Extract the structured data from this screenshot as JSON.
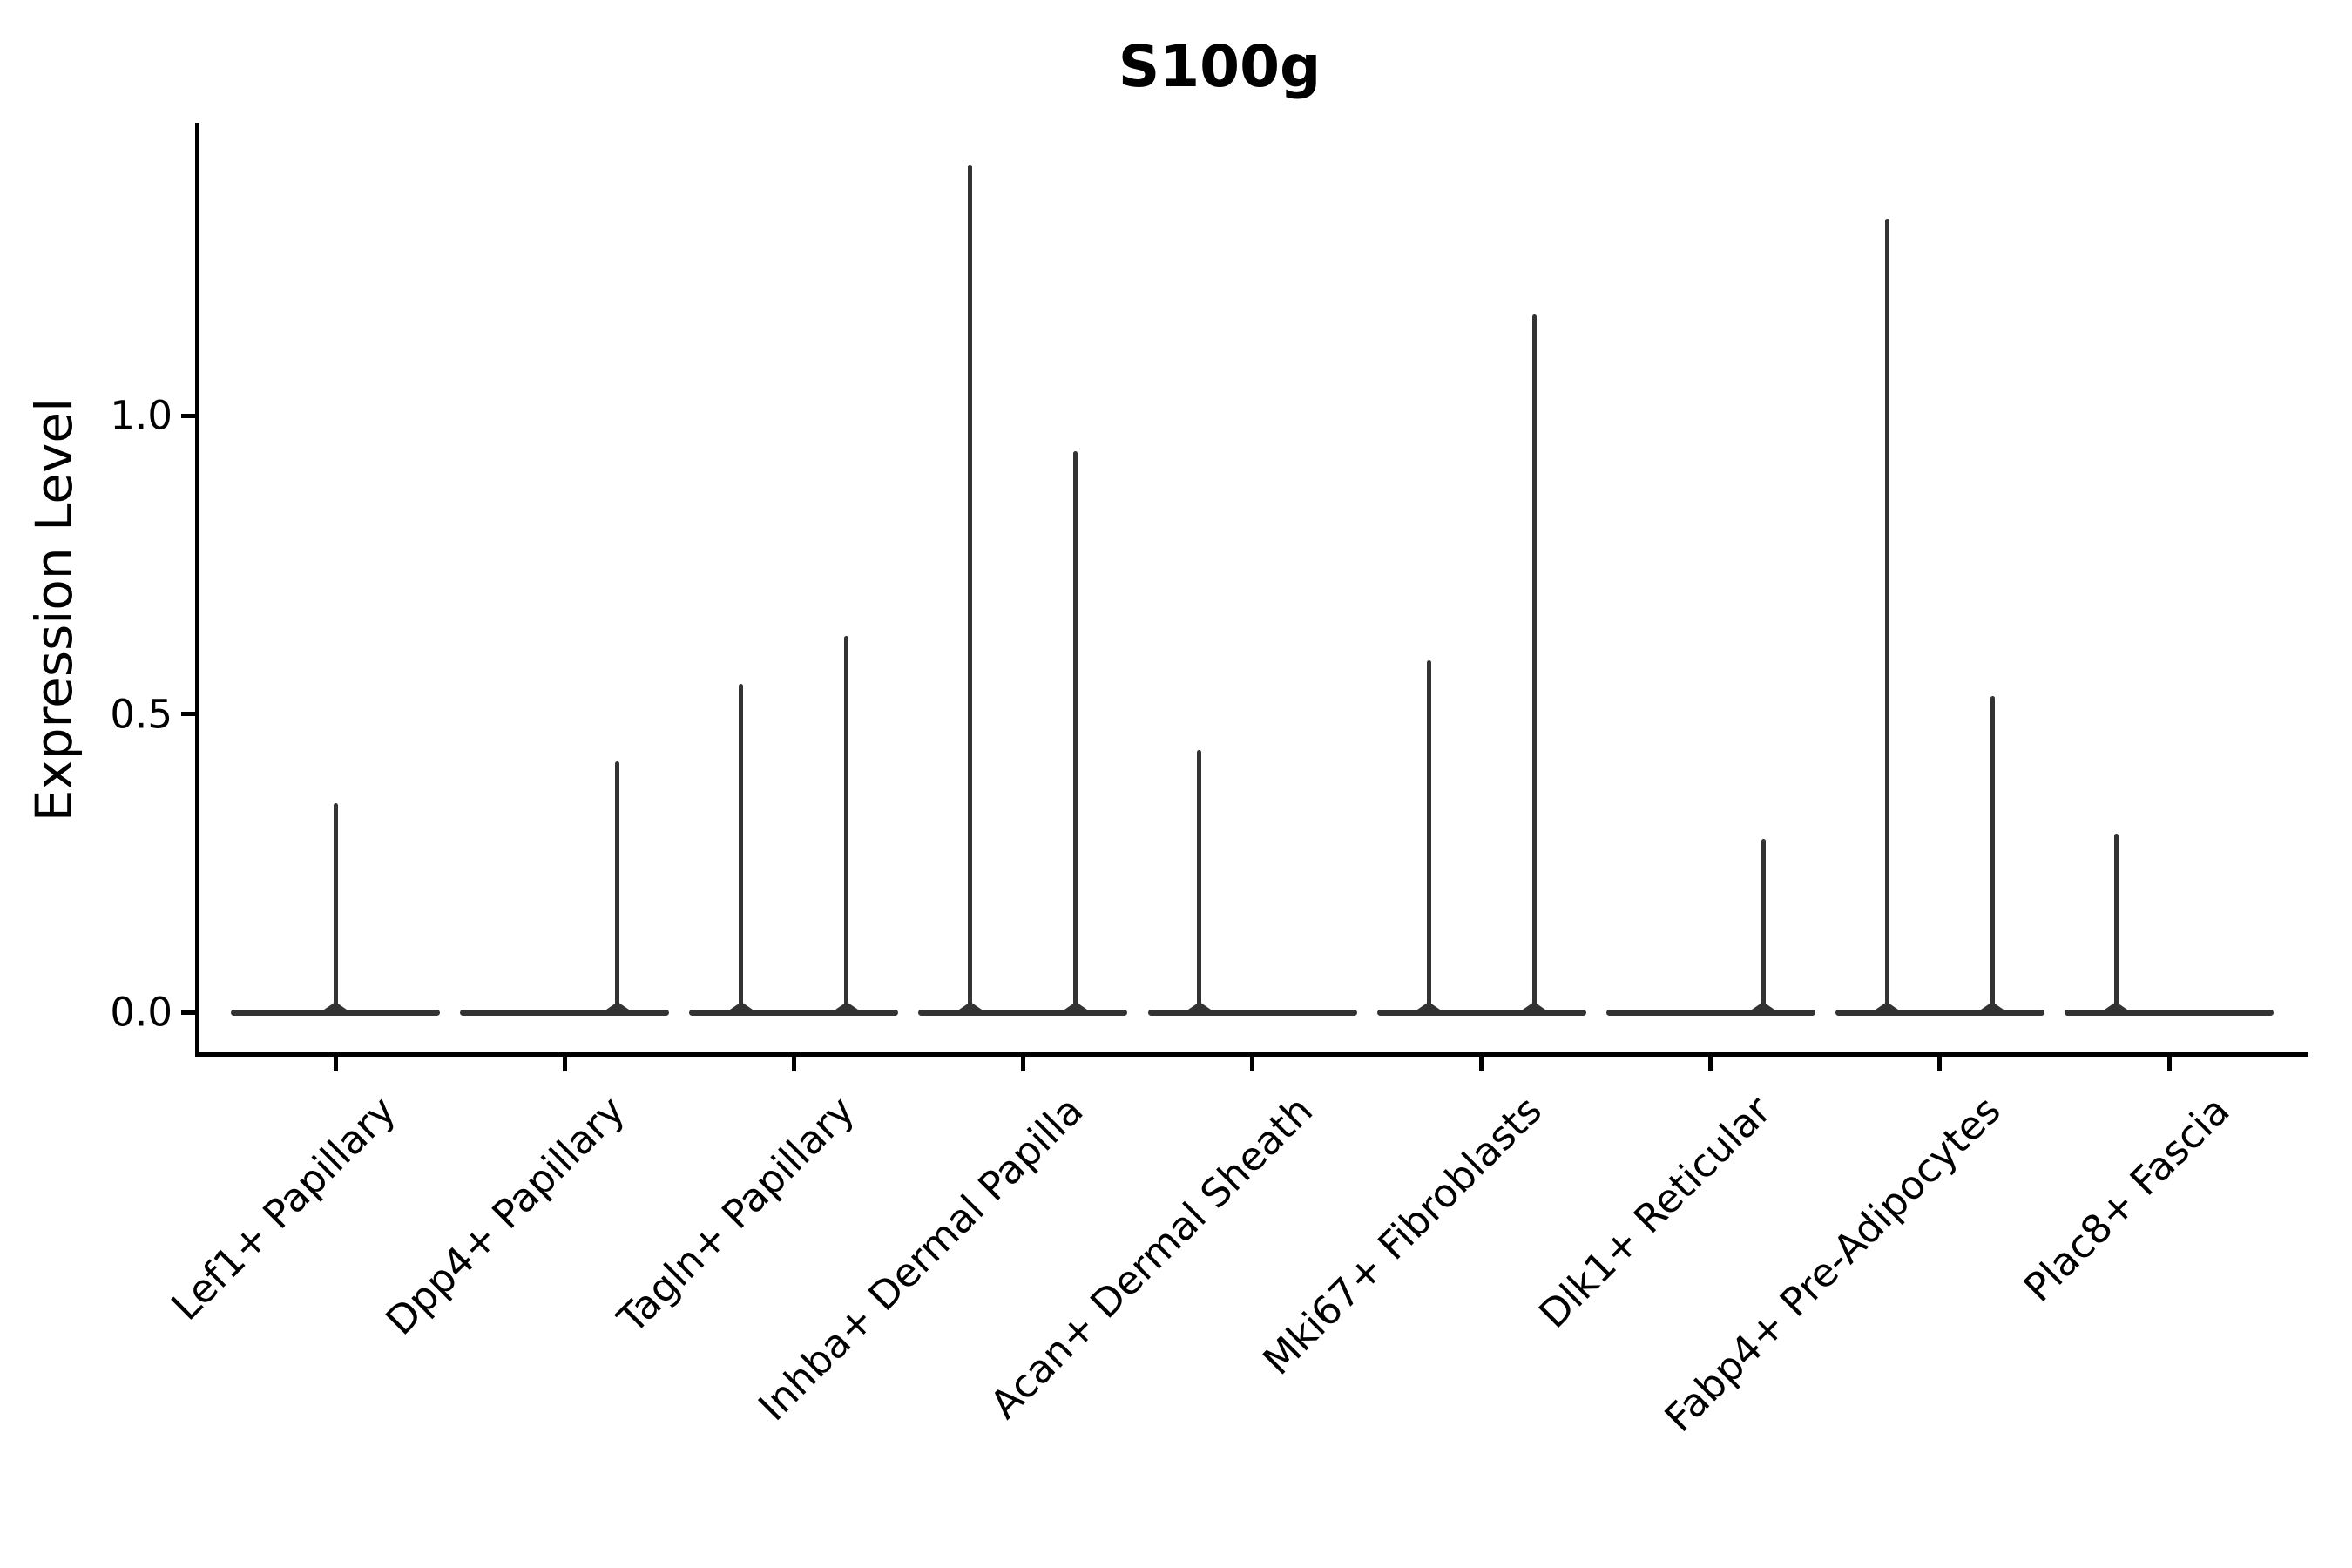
{
  "title": "S100g",
  "chart_data": {
    "type": "violin",
    "title": "S100g",
    "ylabel": "Expression Level",
    "xlabel": "",
    "ytick_labels": [
      "0.0",
      "0.5",
      "1.0"
    ],
    "ytick_values": [
      0.0,
      0.5,
      1.0
    ],
    "ylim": [
      -0.07,
      1.49
    ],
    "grid": false,
    "legend_position": "none",
    "x_label_rotation_deg": 45,
    "categories": [
      "Lef1+ Papillary",
      "Dpp4+ Papillary",
      "Tagln+ Papillary",
      "Inhba+ Dermal Papilla",
      "Acan+ Dermal Sheath",
      "Mki67+ Fibroblasts",
      "Dlk1+ Reticular",
      "Fabp4+ Pre-Adipocytes",
      "Plac8+ Fascia"
    ],
    "violins": [
      {
        "category": "Lef1+ Papillary",
        "baseline_value": 0,
        "spikes": [
          {
            "offset": 0.0,
            "max_expression": 0.35
          }
        ]
      },
      {
        "category": "Dpp4+ Papillary",
        "baseline_value": 0,
        "spikes": [
          {
            "offset": 0.23,
            "max_expression": 0.42
          }
        ]
      },
      {
        "category": "Tagln+ Papillary",
        "baseline_value": 0,
        "spikes": [
          {
            "offset": -0.23,
            "max_expression": 0.55
          },
          {
            "offset": 0.23,
            "max_expression": 0.63
          }
        ]
      },
      {
        "category": "Inhba+ Dermal Papilla",
        "baseline_value": 0,
        "spikes": [
          {
            "offset": -0.23,
            "max_expression": 1.42
          },
          {
            "offset": 0.23,
            "max_expression": 0.94
          }
        ]
      },
      {
        "category": "Acan+ Dermal Sheath",
        "baseline_value": 0,
        "spikes": [
          {
            "offset": -0.23,
            "max_expression": 0.44
          }
        ]
      },
      {
        "category": "Mki67+ Fibroblasts",
        "baseline_value": 0,
        "spikes": [
          {
            "offset": -0.23,
            "max_expression": 0.59
          },
          {
            "offset": 0.23,
            "max_expression": 1.17
          }
        ]
      },
      {
        "category": "Dlk1+ Reticular",
        "baseline_value": 0,
        "spikes": [
          {
            "offset": 0.23,
            "max_expression": 0.29
          }
        ]
      },
      {
        "category": "Fabp4+ Pre-Adipocytes",
        "baseline_value": 0,
        "spikes": [
          {
            "offset": -0.23,
            "max_expression": 1.33
          },
          {
            "offset": 0.23,
            "max_expression": 0.53
          }
        ]
      },
      {
        "category": "Plac8+ Fascia",
        "baseline_value": 0,
        "spikes": [
          {
            "offset": -0.23,
            "max_expression": 0.3
          }
        ]
      }
    ],
    "colors": {
      "violin": "#333333",
      "axis": "#000000",
      "text": "#000000",
      "background": "#ffffff"
    }
  }
}
